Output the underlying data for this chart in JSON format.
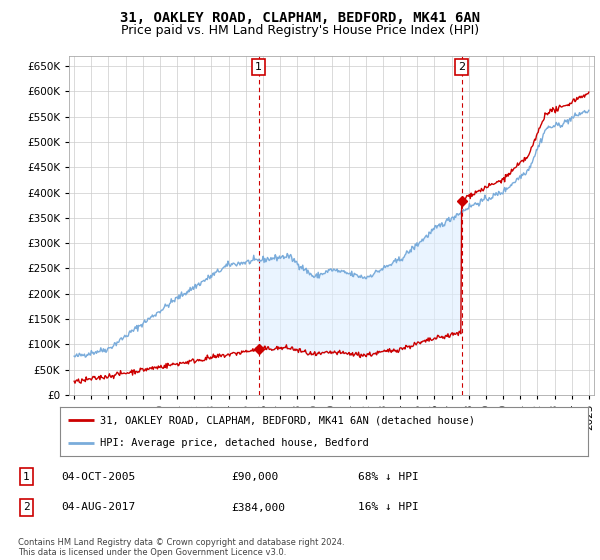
{
  "title": "31, OAKLEY ROAD, CLAPHAM, BEDFORD, MK41 6AN",
  "subtitle": "Price paid vs. HM Land Registry's House Price Index (HPI)",
  "ylim": [
    0,
    670000
  ],
  "yticks": [
    0,
    50000,
    100000,
    150000,
    200000,
    250000,
    300000,
    350000,
    400000,
    450000,
    500000,
    550000,
    600000,
    650000
  ],
  "sale1_year": 2005.75,
  "sale1_price": 90000,
  "sale1_label": "1",
  "sale2_year": 2017.58,
  "sale2_price": 384000,
  "sale2_label": "2",
  "red_color": "#cc0000",
  "blue_color": "#7aacdb",
  "fill_color": "#ddeeff",
  "grid_color": "#cccccc",
  "background_color": "#ffffff",
  "legend_property_label": "31, OAKLEY ROAD, CLAPHAM, BEDFORD, MK41 6AN (detached house)",
  "legend_hpi_label": "HPI: Average price, detached house, Bedford",
  "table_row1": [
    "1",
    "04-OCT-2005",
    "£90,000",
    "68% ↓ HPI"
  ],
  "table_row2": [
    "2",
    "04-AUG-2017",
    "£384,000",
    "16% ↓ HPI"
  ],
  "footnote": "Contains HM Land Registry data © Crown copyright and database right 2024.\nThis data is licensed under the Open Government Licence v3.0.",
  "title_fontsize": 10,
  "subtitle_fontsize": 9,
  "tick_fontsize": 7.5,
  "xstart": 1995,
  "xend": 2025
}
